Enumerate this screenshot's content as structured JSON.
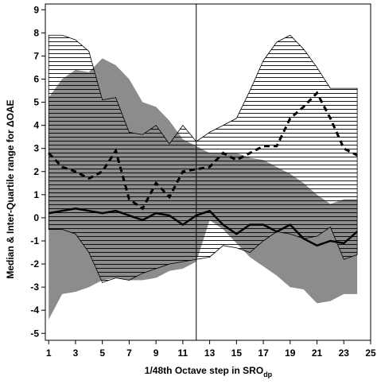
{
  "chart_data": {
    "type": "line",
    "ylabel": "Median & Inter-Quartile range for ΔOAE",
    "xlabel": "1/48th Octave step in SRO",
    "xlabel_sub": "dp",
    "x": [
      1,
      2,
      3,
      4,
      5,
      6,
      7,
      8,
      9,
      10,
      11,
      12,
      13,
      14,
      15,
      16,
      17,
      18,
      19,
      20,
      21,
      22,
      23,
      24
    ],
    "xlim": [
      0.75,
      25
    ],
    "xticks": [
      1,
      3,
      5,
      7,
      9,
      11,
      13,
      15,
      17,
      19,
      21,
      23,
      25
    ],
    "ylim": [
      -5.3,
      9.25
    ],
    "yticks": [
      -5,
      -4,
      -3,
      -2,
      -1,
      0,
      1,
      2,
      3,
      4,
      5,
      6,
      7,
      8,
      9
    ],
    "vline": 12,
    "bands": [
      {
        "color": "#8c8c8c",
        "hatch": false,
        "upper": [
          5.2,
          6.0,
          6.4,
          6.3,
          6.9,
          6.6,
          6.0,
          5.0,
          4.8,
          4.2,
          3.4,
          3.1,
          2.8,
          2.8,
          2.8,
          2.6,
          2.5,
          2.2,
          1.9,
          1.5,
          1.0,
          0.6,
          0.8,
          0.8
        ],
        "lower": [
          -4.4,
          -3.3,
          -3.2,
          -3.0,
          -2.7,
          -2.6,
          -2.7,
          -2.7,
          -2.6,
          -2.3,
          -2.2,
          -1.9,
          -0.1,
          -0.5,
          -1.1,
          -1.7,
          -2.1,
          -2.5,
          -3.0,
          -3.1,
          -3.7,
          -3.6,
          -3.3,
          -3.3
        ]
      },
      {
        "color": "#000000",
        "hatch": true,
        "upper": [
          7.9,
          7.9,
          7.7,
          7.2,
          5.1,
          5.2,
          3.7,
          3.6,
          4.0,
          3.2,
          4.0,
          3.3,
          3.7,
          4.0,
          4.3,
          5.5,
          6.8,
          7.6,
          7.9,
          7.3,
          6.5,
          5.6,
          5.6,
          5.6
        ],
        "lower": [
          -0.5,
          -0.5,
          -0.7,
          -1.5,
          -2.8,
          -2.6,
          -2.7,
          -2.4,
          -2.2,
          -2.0,
          -1.9,
          -1.8,
          -1.7,
          -1.2,
          -1.3,
          -1.5,
          -1.0,
          -0.6,
          -0.7,
          -0.9,
          -0.8,
          -0.4,
          -1.8,
          -1.6
        ]
      }
    ],
    "series": [
      {
        "color": "#000000",
        "dash": false,
        "values": [
          0.2,
          0.3,
          0.4,
          0.3,
          0.2,
          0.3,
          0.1,
          -0.1,
          0.2,
          0.1,
          -0.3,
          0.1,
          0.3,
          -0.3,
          -0.7,
          -0.3,
          -0.3,
          -0.6,
          -0.3,
          -0.9,
          -1.2,
          -1.0,
          -1.1,
          -0.6
        ]
      },
      {
        "color": "#000000",
        "dash": true,
        "values": [
          2.8,
          2.2,
          2.0,
          1.7,
          2.0,
          2.9,
          0.8,
          0.4,
          1.5,
          0.9,
          2.0,
          2.1,
          2.2,
          2.8,
          2.5,
          2.8,
          3.1,
          3.1,
          4.3,
          4.8,
          5.4,
          4.3,
          3.0,
          2.7
        ]
      }
    ]
  }
}
